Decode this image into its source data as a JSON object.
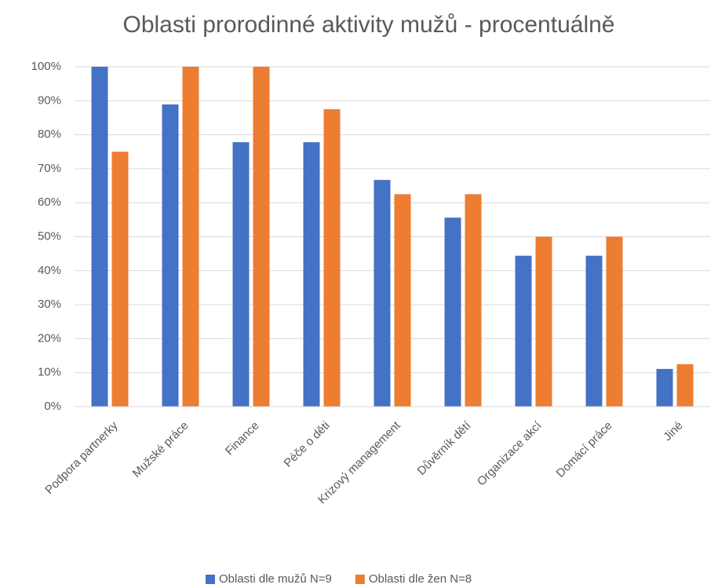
{
  "chart_data": {
    "type": "bar",
    "title": "Oblasti prorodinné aktivity mužů - procentuálně",
    "categories": [
      "Podpora partnerky",
      "Mužské práce",
      "Finance",
      "Péče o děti",
      "Krizový management",
      "Důvěrník dětí",
      "Organizace akcí",
      "Domácí práce",
      "Jiné"
    ],
    "series": [
      {
        "name": "Oblasti dle mužů N=9",
        "color": "#4472c4",
        "values": [
          100,
          88.9,
          77.8,
          77.8,
          66.7,
          55.6,
          44.4,
          44.4,
          11.1
        ]
      },
      {
        "name": "Oblasti dle žen N=8",
        "color": "#ed7d31",
        "values": [
          75,
          100,
          100,
          87.5,
          62.5,
          62.5,
          50,
          50,
          12.5
        ]
      }
    ],
    "ylim": [
      0,
      100
    ],
    "yticks": [
      {
        "value": 0,
        "label": "0%"
      },
      {
        "value": 10,
        "label": "10%"
      },
      {
        "value": 20,
        "label": "20%"
      },
      {
        "value": 30,
        "label": "30%"
      },
      {
        "value": 40,
        "label": "40%"
      },
      {
        "value": 50,
        "label": "50%"
      },
      {
        "value": 60,
        "label": "60%"
      },
      {
        "value": 70,
        "label": "70%"
      },
      {
        "value": 80,
        "label": "80%"
      },
      {
        "value": 90,
        "label": "90%"
      },
      {
        "value": 100,
        "label": "100%"
      }
    ],
    "grid": true,
    "legend": "bottom"
  }
}
